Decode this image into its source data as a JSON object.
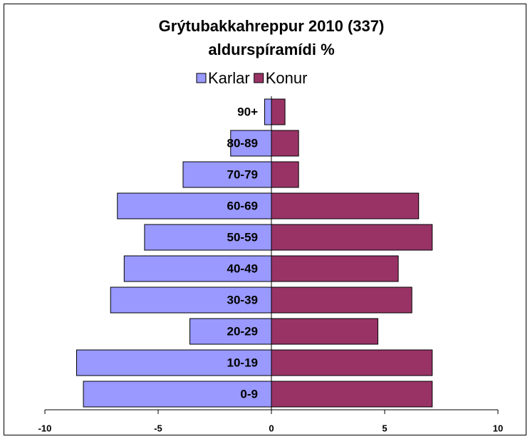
{
  "chart_data": {
    "type": "pyramid",
    "title": "Grýtubakkahreppur 2010 (337)",
    "subtitle": "aldurspíramídi %",
    "categories": [
      "0-9",
      "10-19",
      "20-29",
      "30-39",
      "40-49",
      "50-59",
      "60-69",
      "70-79",
      "80-89",
      "90+"
    ],
    "series": [
      {
        "name": "Karlar",
        "color": "#9999ff",
        "values": [
          -8.3,
          -8.6,
          -3.6,
          -7.1,
          -6.5,
          -5.6,
          -6.8,
          -3.9,
          -1.8,
          -0.3
        ]
      },
      {
        "name": "Konur",
        "color": "#993366",
        "values": [
          7.1,
          7.1,
          4.7,
          6.2,
          5.6,
          7.1,
          6.5,
          1.2,
          1.2,
          0.6
        ]
      }
    ],
    "xlim": [
      -10,
      10
    ],
    "xticks": [
      -10,
      -5,
      0,
      5,
      10
    ],
    "legend": "top"
  }
}
